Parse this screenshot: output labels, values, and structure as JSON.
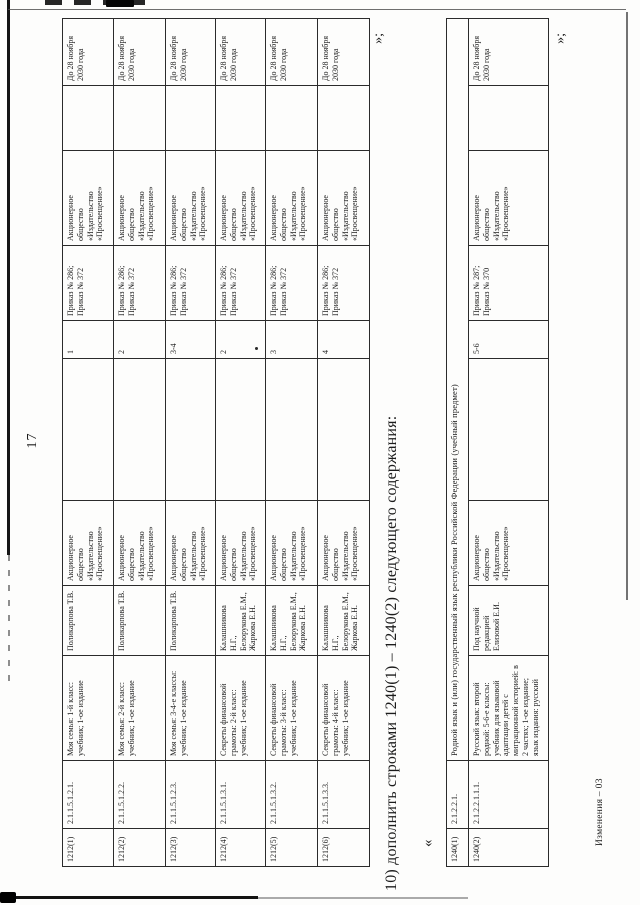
{
  "page": {
    "number": "17",
    "footer_stamp": "Изменения – 03",
    "clause": "10) дополнить строками 1240(1) – 1240(2) следующего содержания:",
    "open_quote": "«",
    "close_quote_after_table1": "»;",
    "close_quote_after_table2": "»;"
  },
  "table1": {
    "rows": [
      {
        "id": "1212(1)",
        "code": "2.1.1.5.1.2.1.",
        "title": "Моя семья: 1-й класс:\nучебник; 1-ое издание",
        "authors": "Поликарпова Т.В.",
        "publisher": "Акционерное\nобщество\n«Издательство\n«Просвещение»",
        "grades": "1",
        "orders": "Приказ № 286;\nПриказ № 372",
        "rights_holder": "Акционерное\nобщество\n«Издательство\n«Просвещение»",
        "valid_until": "До 28 ноября\n2030 года"
      },
      {
        "id": "1212(2)",
        "code": "2.1.1.5.1.2.2.",
        "title": "Моя семья: 2-й класс:\nучебник; 1-ое издание",
        "authors": "Поликарпова Т.В.",
        "publisher": "Акционерное\nобщество\n«Издательство\n«Просвещение»",
        "grades": "2",
        "orders": "Приказ № 286;\nПриказ № 372",
        "rights_holder": "Акционерное\nобщество\n«Издательство\n«Просвещение»",
        "valid_until": "До 28 ноября\n2030 года"
      },
      {
        "id": "1212(3)",
        "code": "2.1.1.5.1.2.3.",
        "title": "Моя семья: 3-4-е классы:\nучебник; 1-ое издание",
        "authors": "Поликарпова Т.В.",
        "publisher": "Акционерное\nобщество\n«Издательство\n«Просвещение»",
        "grades": "3-4",
        "orders": "Приказ № 286;\nПриказ № 372",
        "rights_holder": "Акционерное\nобщество\n«Издательство\n«Просвещение»",
        "valid_until": "До 28 ноября\n2030 года"
      },
      {
        "id": "1212(4)",
        "code": "2.1.1.5.1.3.1.",
        "title": "Секреты финансовой\nграмоты: 2-й класс:\nучебник; 1-ое издание",
        "authors": "Калашникова\nН.Г.,\nБелорукова Е.М.,\nЖаркова Е.Н.",
        "publisher": "Акционерное\nобщество\n«Издательство\n«Просвещение»",
        "grades": "2",
        "orders": "Приказ № 286;\nПриказ № 372",
        "rights_holder": "Акционерное\nобщество\n«Издательство\n«Просвещение»",
        "valid_until": "До 28 ноября\n2030 года"
      },
      {
        "id": "1212(5)",
        "code": "2.1.1.5.1.3.2.",
        "title": "Секреты финансовой\nграмоты: 3-й класс:\nучебник; 1-ое издание",
        "authors": "Калашникова\nН.Г.,\nБелорукова Е.М.,\nЖаркова Е.Н.",
        "publisher": "Акционерное\nобщество\n«Издательство\n«Просвещение»",
        "grades": "3",
        "orders": "Приказ № 286;\nПриказ № 372",
        "rights_holder": "Акционерное\nобщество\n«Издательство\n«Просвещение»",
        "valid_until": "До 28 ноября\n2030 года"
      },
      {
        "id": "1212(6)",
        "code": "2.1.1.5.1.3.3.",
        "title": "Секреты финансовой\nграмоты: 4-й класс:\nучебник; 1-ое издание",
        "authors": "Калашникова\nН.Г.,\nБелорукова Е.М.,\nЖаркова Е.Н.",
        "publisher": "Акционерное\nобщество\n«Издательство\n«Просвещение»",
        "grades": "4",
        "orders": "Приказ № 286;\nПриказ № 372",
        "rights_holder": "Акционерное\nобщество\n«Издательство\n«Просвещение»",
        "valid_until": "До 28 ноября\n2030 года"
      }
    ]
  },
  "table2": {
    "section_row": {
      "id": "1240(1)",
      "code": "2.1.2.2.1.",
      "title": "Родной язык и (или) государственный язык республики Российской Федерации (учебный предмет)"
    },
    "rows": [
      {
        "id": "1240(2)",
        "code": "2.1.2.2.1.1.1.",
        "title": "Русский язык: второй\nродной: 5-6-е классы:\nучебник для языковой\nадаптации детей с\nмиграционной историей: в\n2 частях; 1-ое издание;\nязык издания: русский",
        "authors": "Под научной\nредакцией\nЕлизовой Е.И.",
        "publisher": "Акционерное\nобщество\n«Издательство\n«Просвещение»",
        "grades": "5-6",
        "orders": "Приказ № 287;\nПриказ № 370",
        "rights_holder": "Акционерное\nобщество\n«Издательство\n«Просвещение»",
        "valid_until": "До 28 ноября\n2030 года"
      }
    ]
  }
}
